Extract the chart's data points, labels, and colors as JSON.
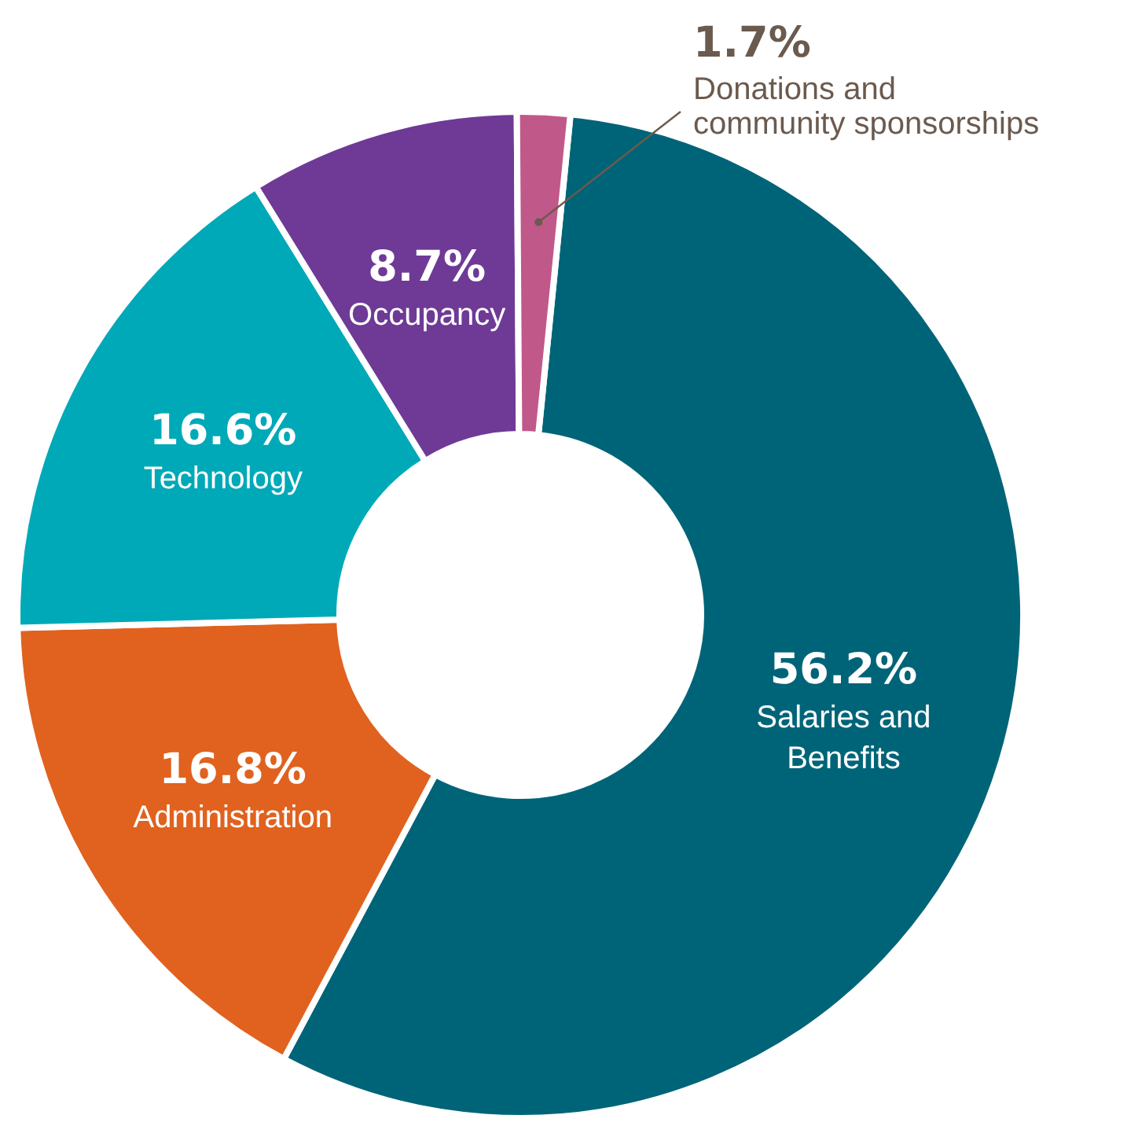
{
  "chart_data": {
    "type": "donut",
    "categories": [
      "Salaries and Benefits",
      "Administration",
      "Technology",
      "Occupancy",
      "Donations and community sponsorships"
    ],
    "values": [
      56.2,
      16.8,
      16.6,
      8.7,
      1.7
    ],
    "colors": [
      "#006478",
      "#e0621e",
      "#00a9b8",
      "#6e3a96",
      "#c0588a"
    ],
    "value_labels": [
      "56.2%",
      "16.8%",
      "16.6%",
      "8.7%",
      "1.7%"
    ]
  }
}
